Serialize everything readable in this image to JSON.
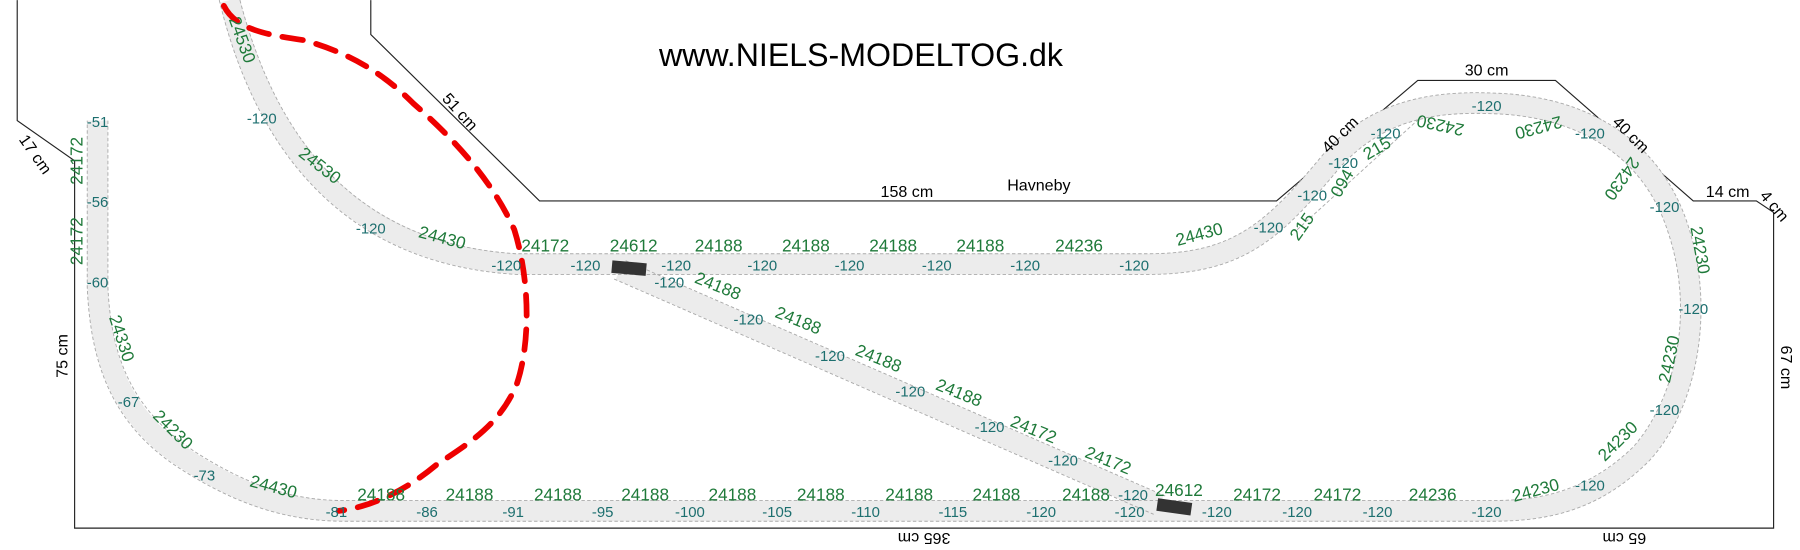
{
  "title": "www.NIELS-MODELTOG.dk",
  "station": "Havneby",
  "dimensions": [
    "51 cm",
    "158 cm",
    "40 cm",
    "30 cm",
    "40 cm",
    "14 cm",
    "4 cm",
    "17 cm",
    "75 cm",
    "67 cm",
    "365 cm",
    "65 cm"
  ],
  "track_pieces": [
    "24530",
    "24530",
    "24430",
    "24172",
    "24612",
    "24188",
    "24188",
    "24188",
    "24188",
    "24236",
    "24430",
    "215",
    "094",
    "215",
    "24230",
    "24230",
    "24230",
    "24230",
    "24230",
    "24230",
    "24230",
    "24236",
    "24172",
    "24172",
    "24612",
    "24188",
    "24188",
    "24188",
    "24188",
    "24188",
    "24188",
    "24188",
    "24188",
    "24188",
    "24430",
    "24230",
    "24330",
    "24172",
    "24172",
    "24188",
    "24188",
    "24188",
    "24188",
    "24172",
    "24172"
  ],
  "heights": [
    "-51",
    "-56",
    "-60",
    "-67",
    "-73",
    "-81",
    "-86",
    "-91",
    "-95",
    "-100",
    "-105",
    "-110",
    "-115",
    "-120",
    "-120",
    "-120",
    "-120",
    "-120",
    "-120",
    "-120",
    "-120",
    "-120",
    "-120",
    "-120",
    "-120",
    "-120",
    "-120",
    "-120",
    "-120",
    "-120",
    "-120",
    "-120",
    "-120",
    "-120",
    "-120",
    "-120",
    "-120",
    "-120",
    "-120",
    "-120",
    "-120",
    "-120",
    "-120",
    "-120",
    "-120",
    "-120",
    "-120"
  ]
}
